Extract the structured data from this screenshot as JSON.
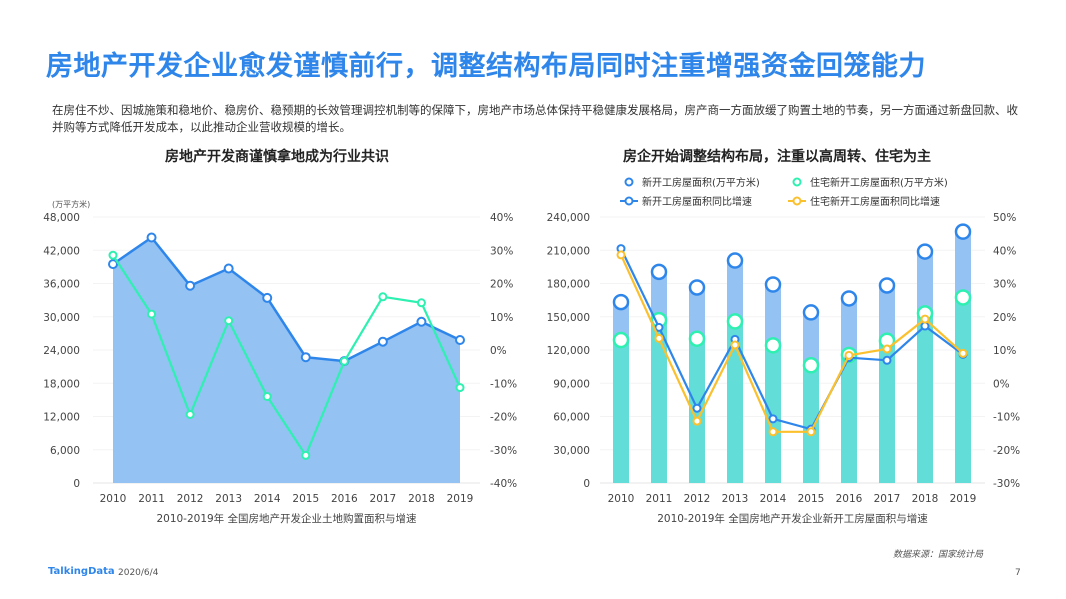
{
  "title": "房地产开发企业愈发谨慎前行，调整结构布局同时注重增强资金回笼能力",
  "intro": "在房住不炒、因城施策和稳地价、稳房价、稳预期的长效管理调控机制等的保障下，房地产市场总体保持平稳健康发展格局，房产商一方面放缓了购置土地的节奏，另一方面通过新盘回款、收并购等方式降低开发成本，以此推动企业营收规模的增长。",
  "footer": {
    "logo": "TalkingData",
    "date": "2020/6/4",
    "page": "7",
    "source": "数据来源：国家统计局"
  },
  "colors": {
    "title": "#2f86ea",
    "blue": "#2f86ea",
    "blue_fill": "#93c2f3",
    "teal": "#62ddd8",
    "green": "#2ef0b0",
    "yellow": "#fbc02d"
  },
  "chart_data": [
    {
      "type": "area+line",
      "title": "房地产开发商谨慎拿地成为行业共识",
      "xlabel": "2010-2019年  全国房地产开发企业土地购置面积与增速",
      "ylabel": "(万平方米)",
      "categories": [
        "2010",
        "2011",
        "2012",
        "2013",
        "2014",
        "2015",
        "2016",
        "2017",
        "2018",
        "2019"
      ],
      "ylim": [
        0,
        48000
      ],
      "yticks": [
        "0",
        "6,000",
        "12,000",
        "18,000",
        "24,000",
        "30,000",
        "36,000",
        "42,000",
        "48,000"
      ],
      "y2lim": [
        -40,
        40
      ],
      "y2ticks": [
        "-40%",
        "-30%",
        "-20%",
        "-10%",
        "0%",
        "10%",
        "20%",
        "30%",
        "40%"
      ],
      "grid": true,
      "series": [
        {
          "axis": "left",
          "type": "area",
          "values": [
            39500,
            44300,
            35600,
            38700,
            33400,
            22700,
            22000,
            25500,
            29100,
            25800
          ]
        },
        {
          "axis": "right",
          "type": "line",
          "values": [
            28.5,
            10.8,
            -19.4,
            8.8,
            -14.0,
            -31.7,
            -3.4,
            16.0,
            14.2,
            -11.3
          ]
        }
      ]
    },
    {
      "type": "bar+line",
      "title": "房企开始调整结构布局，注重以高周转、住宅为主",
      "xlabel": "2010-2019年  全国房地产开发企业新开工房屋面积与增速",
      "categories": [
        "2010",
        "2011",
        "2012",
        "2013",
        "2014",
        "2015",
        "2016",
        "2017",
        "2018",
        "2019"
      ],
      "ylim": [
        0,
        240000
      ],
      "yticks": [
        "0",
        "30,000",
        "60,000",
        "90,000",
        "120,000",
        "150,000",
        "180,000",
        "210,000",
        "240,000"
      ],
      "y2lim": [
        -30,
        50
      ],
      "y2ticks": [
        "-30%",
        "-20%",
        "-10%",
        "0%",
        "10%",
        "20%",
        "30%",
        "40%",
        "50%"
      ],
      "grid": true,
      "legend": "top",
      "series": [
        {
          "name": "新开工房屋面积(万平方米)",
          "axis": "left",
          "type": "bar",
          "values": [
            163200,
            190500,
            176400,
            200700,
            179100,
            153900,
            166500,
            178200,
            208800,
            226800
          ]
        },
        {
          "name": "住宅新开工房屋面积(万平方米)",
          "axis": "left",
          "type": "bar",
          "values": [
            129000,
            147000,
            130200,
            145800,
            124200,
            106200,
            115500,
            128400,
            153000,
            167400
          ]
        },
        {
          "name": "新开工房屋面积同比增速",
          "axis": "right",
          "type": "line",
          "values": [
            40.5,
            16.8,
            -7.5,
            13.2,
            -10.7,
            -13.8,
            7.7,
            6.9,
            17.2,
            8.7
          ]
        },
        {
          "name": "住宅新开工房屋面积同比增速",
          "axis": "right",
          "type": "line",
          "values": [
            38.6,
            13.5,
            -11.4,
            11.5,
            -14.6,
            -14.6,
            8.4,
            10.3,
            19.3,
            9.0
          ]
        }
      ]
    }
  ]
}
